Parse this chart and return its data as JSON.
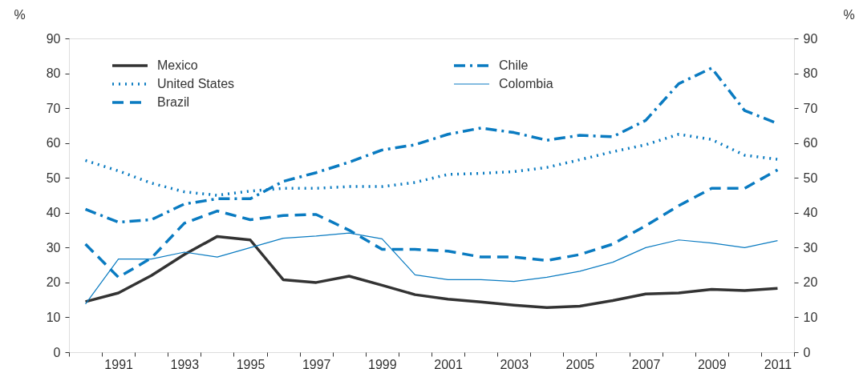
{
  "chart_data": {
    "type": "line",
    "categories": [
      null,
      "1991",
      null,
      "1993",
      null,
      "1995",
      null,
      "1997",
      null,
      "1999",
      null,
      "2001",
      null,
      "2003",
      null,
      "2005",
      null,
      "2007",
      null,
      "2009",
      null,
      "2011"
    ],
    "series": [
      {
        "name": "Mexico",
        "color": "#333333",
        "line_style": "solid",
        "values": [
          14.5,
          17,
          22,
          28,
          33.2,
          32.2,
          20.8,
          20,
          21.8,
          19.2,
          16.5,
          15.2,
          14.4,
          13.5,
          12.8,
          13.2,
          14.8,
          16.7,
          17,
          18,
          17.7,
          18.3
        ]
      },
      {
        "name": "United States",
        "color": "#0a7bc1",
        "line_style": "dotted",
        "values": [
          55,
          52,
          48.5,
          46,
          45,
          46.2,
          47,
          47,
          47.5,
          47.5,
          48.7,
          51,
          51.3,
          51.8,
          53,
          55.2,
          57.5,
          59.5,
          62.5,
          61,
          56.5,
          55.3
        ]
      },
      {
        "name": "Brazil",
        "color": "#0a7bc1",
        "line_style": "dashed",
        "values": [
          31,
          21.5,
          27,
          37,
          40.5,
          38,
          39.2,
          39.5,
          35,
          29.5,
          29.5,
          29,
          27.3,
          27.3,
          26.3,
          28,
          31,
          36.3,
          42,
          47,
          47,
          52.3
        ]
      },
      {
        "name": "Chile",
        "color": "#0a7bc1",
        "line_style": "dashdot",
        "values": [
          41,
          37.3,
          38,
          42.5,
          44,
          44,
          49,
          51.5,
          54.5,
          58,
          59.5,
          62.5,
          64.3,
          63,
          60.8,
          62.2,
          61.8,
          66.5,
          77,
          81.5,
          69.3,
          65.6
        ]
      },
      {
        "name": "Colombia",
        "color": "#0a7bc1",
        "line_style": "solid",
        "values": [
          13.8,
          26.7,
          26.7,
          28.7,
          27.3,
          30,
          32.7,
          33.3,
          34.2,
          32.5,
          22.2,
          20.8,
          20.8,
          20.3,
          21.5,
          23.2,
          25.8,
          30,
          32.2,
          31.3,
          30,
          32
        ]
      }
    ],
    "ylabel": "%",
    "y2label": "%",
    "ylim": [
      0,
      90
    ],
    "yticks": [
      0,
      10,
      20,
      30,
      40,
      50,
      60,
      70,
      80,
      90
    ],
    "y2lim": [
      0,
      90
    ],
    "y2ticks": [
      0,
      10,
      20,
      30,
      40,
      50,
      60,
      70,
      80,
      90
    ],
    "grid": false,
    "legend": "top",
    "marker": "none"
  }
}
